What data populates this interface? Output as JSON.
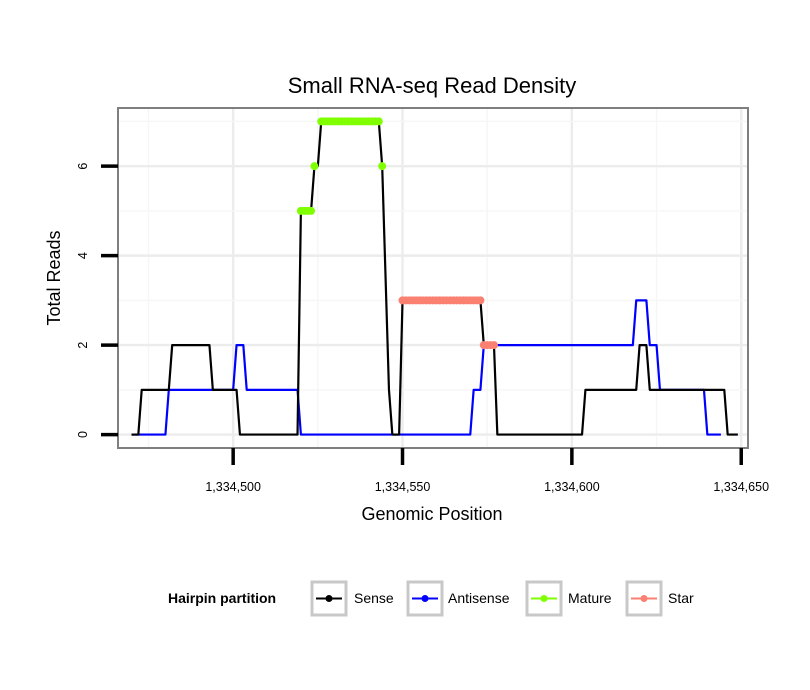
{
  "chart_data": {
    "type": "line",
    "title": "Small RNA-seq Read Density",
    "xlabel": "Genomic Position",
    "ylabel": "Total Reads",
    "xlim": [
      1334466,
      1334652
    ],
    "ylim": [
      -0.3,
      7.3
    ],
    "x_ticks": [
      1334500,
      1334550,
      1334600,
      1334650
    ],
    "x_tick_labels": [
      "1,334,500",
      "1,334,550",
      "1,334,600",
      "1,334,650"
    ],
    "y_ticks": [
      0,
      2,
      4,
      6
    ],
    "y_tick_labels": [
      "0",
      "2",
      "4",
      "6"
    ],
    "grid": true,
    "legend": {
      "title": "Hairpin partition",
      "position": "bottom",
      "entries": [
        {
          "name": "Sense",
          "color": "#000000"
        },
        {
          "name": "Antisense",
          "color": "#0000ff"
        },
        {
          "name": "Mature",
          "color": "#7fff00"
        },
        {
          "name": "Star",
          "color": "#fa8072"
        }
      ]
    },
    "series": [
      {
        "name": "Sense",
        "color": "#000000",
        "x": [
          1334470,
          1334472,
          1334473,
          1334481,
          1334482,
          1334493,
          1334494,
          1334501,
          1334502,
          1334519,
          1334520,
          1334523,
          1334524,
          1334525,
          1334526,
          1334543,
          1334544,
          1334546,
          1334547,
          1334549,
          1334550,
          1334573,
          1334574,
          1334577,
          1334578,
          1334603,
          1334604,
          1334619,
          1334620,
          1334622,
          1334623,
          1334645,
          1334646,
          1334649
        ],
        "y": [
          0,
          0,
          1,
          1,
          2,
          2,
          1,
          1,
          0,
          0,
          5,
          5,
          6,
          6,
          7,
          7,
          6,
          1,
          0,
          0,
          3,
          3,
          2,
          2,
          0,
          0,
          1,
          1,
          2,
          2,
          1,
          1,
          0,
          0
        ]
      },
      {
        "name": "Antisense",
        "color": "#0000ff",
        "x": [
          1334470,
          1334480,
          1334481,
          1334500,
          1334501,
          1334503,
          1334504,
          1334519,
          1334520,
          1334570,
          1334571,
          1334573,
          1334574,
          1334585,
          1334586,
          1334618,
          1334619,
          1334622,
          1334623,
          1334625,
          1334626,
          1334639,
          1334640,
          1334644
        ],
        "y": [
          0,
          0,
          1,
          1,
          2,
          2,
          1,
          1,
          0,
          0,
          1,
          1,
          2,
          2,
          2,
          2,
          3,
          3,
          2,
          2,
          1,
          1,
          0,
          0
        ]
      },
      {
        "name": "Mature",
        "color": "#7fff00",
        "points": [
          {
            "x": 1334520,
            "y": 5
          },
          {
            "x": 1334521,
            "y": 5
          },
          {
            "x": 1334522,
            "y": 5
          },
          {
            "x": 1334523,
            "y": 5
          },
          {
            "x": 1334524,
            "y": 6
          },
          {
            "x": 1334526,
            "y": 7
          },
          {
            "x": 1334527,
            "y": 7
          },
          {
            "x": 1334528,
            "y": 7
          },
          {
            "x": 1334529,
            "y": 7
          },
          {
            "x": 1334530,
            "y": 7
          },
          {
            "x": 1334531,
            "y": 7
          },
          {
            "x": 1334532,
            "y": 7
          },
          {
            "x": 1334533,
            "y": 7
          },
          {
            "x": 1334534,
            "y": 7
          },
          {
            "x": 1334535,
            "y": 7
          },
          {
            "x": 1334536,
            "y": 7
          },
          {
            "x": 1334537,
            "y": 7
          },
          {
            "x": 1334538,
            "y": 7
          },
          {
            "x": 1334539,
            "y": 7
          },
          {
            "x": 1334540,
            "y": 7
          },
          {
            "x": 1334541,
            "y": 7
          },
          {
            "x": 1334542,
            "y": 7
          },
          {
            "x": 1334543,
            "y": 7
          },
          {
            "x": 1334544,
            "y": 6
          }
        ]
      },
      {
        "name": "Star",
        "color": "#fa8072",
        "points": [
          {
            "x": 1334550,
            "y": 3
          },
          {
            "x": 1334551,
            "y": 3
          },
          {
            "x": 1334552,
            "y": 3
          },
          {
            "x": 1334553,
            "y": 3
          },
          {
            "x": 1334554,
            "y": 3
          },
          {
            "x": 1334555,
            "y": 3
          },
          {
            "x": 1334556,
            "y": 3
          },
          {
            "x": 1334557,
            "y": 3
          },
          {
            "x": 1334558,
            "y": 3
          },
          {
            "x": 1334559,
            "y": 3
          },
          {
            "x": 1334560,
            "y": 3
          },
          {
            "x": 1334561,
            "y": 3
          },
          {
            "x": 1334562,
            "y": 3
          },
          {
            "x": 1334563,
            "y": 3
          },
          {
            "x": 1334564,
            "y": 3
          },
          {
            "x": 1334565,
            "y": 3
          },
          {
            "x": 1334566,
            "y": 3
          },
          {
            "x": 1334567,
            "y": 3
          },
          {
            "x": 1334568,
            "y": 3
          },
          {
            "x": 1334569,
            "y": 3
          },
          {
            "x": 1334570,
            "y": 3
          },
          {
            "x": 1334571,
            "y": 3
          },
          {
            "x": 1334572,
            "y": 3
          },
          {
            "x": 1334573,
            "y": 3
          },
          {
            "x": 1334574,
            "y": 2
          },
          {
            "x": 1334575,
            "y": 2
          },
          {
            "x": 1334576,
            "y": 2
          },
          {
            "x": 1334577,
            "y": 2
          }
        ]
      }
    ]
  }
}
